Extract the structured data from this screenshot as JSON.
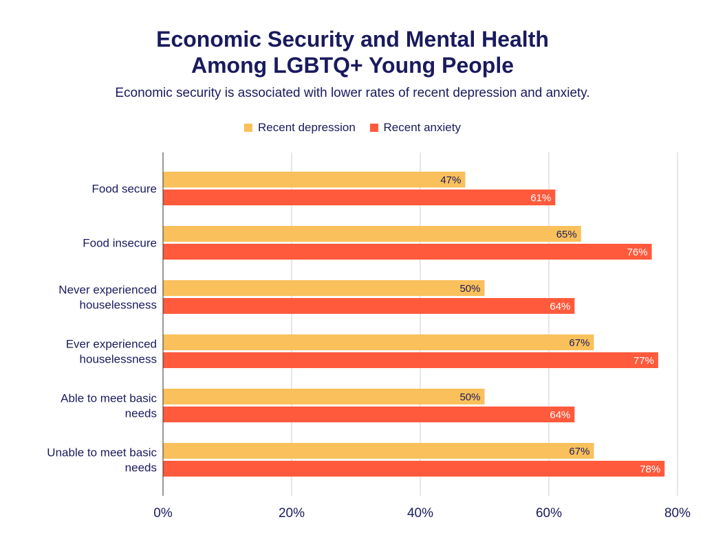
{
  "chart_data": {
    "type": "bar",
    "orientation": "horizontal",
    "title_lines": [
      "Economic Security and Mental Health",
      "Among LGBTQ+ Young People"
    ],
    "subtitle": "Economic security is associated with lower rates of recent depression and anxiety.",
    "categories": [
      [
        "Food secure"
      ],
      [
        "Food insecure"
      ],
      [
        "Never experienced",
        "houselessness"
      ],
      [
        "Ever experienced",
        "houselessness"
      ],
      [
        "Able to meet basic",
        "needs"
      ],
      [
        "Unable to meet basic",
        "needs"
      ]
    ],
    "series": [
      {
        "name": "Recent depression",
        "color": "#f9c05b",
        "label_color": "#1a1a5e",
        "values": [
          47,
          65,
          50,
          67,
          50,
          67
        ],
        "labels": [
          "47%",
          "65%",
          "50%",
          "67%",
          "50%",
          "67%"
        ]
      },
      {
        "name": "Recent anxiety",
        "color": "#ff5a3c",
        "label_color": "#ffffff",
        "values": [
          61,
          76,
          64,
          77,
          64,
          78
        ],
        "labels": [
          "61%",
          "76%",
          "64%",
          "77%",
          "64%",
          "78%"
        ]
      }
    ],
    "xlim": [
      0,
      80
    ],
    "ticks": [
      0,
      20,
      40,
      60,
      80
    ],
    "tick_labels": [
      "0%",
      "20%",
      "40%",
      "60%",
      "80%"
    ],
    "grid": true,
    "legend_position": "top-center"
  }
}
